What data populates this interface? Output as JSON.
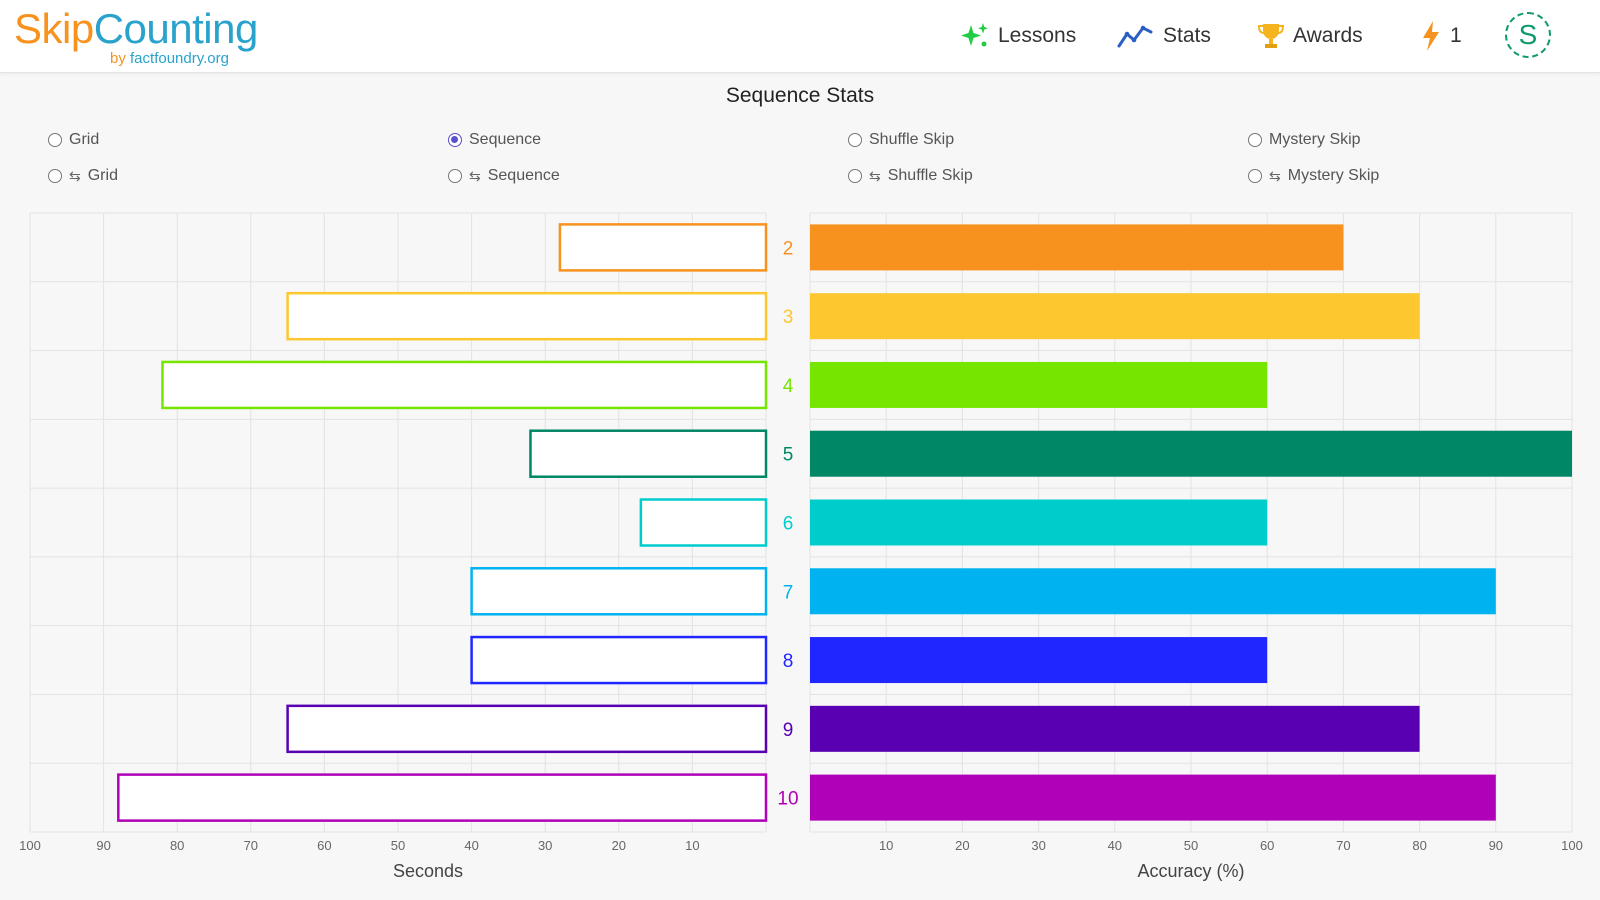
{
  "header": {
    "logo_skip": "Skip",
    "logo_counting": "Counting",
    "logo_by": "by ",
    "logo_site": "factfoundry.org",
    "nav": {
      "lessons": "Lessons",
      "stats": "Stats",
      "awards": "Awards",
      "streak": "1"
    },
    "avatar_letter": "S"
  },
  "page": {
    "title": "Sequence Stats"
  },
  "modes": {
    "grid": "Grid",
    "sequence": "Sequence",
    "shuffle_skip": "Shuffle Skip",
    "mystery_skip": "Mystery Skip",
    "rev_grid": "Grid",
    "rev_sequence": "Sequence",
    "rev_shuffle_skip": "Shuffle Skip",
    "rev_mystery_skip": "Mystery Skip",
    "selected": "sequence"
  },
  "chart_data": {
    "type": "bar",
    "categories": [
      "2",
      "3",
      "4",
      "5",
      "6",
      "7",
      "8",
      "9",
      "10"
    ],
    "category_colors": [
      "#f7921e",
      "#fcc72f",
      "#76e600",
      "#008765",
      "#00cccc",
      "#00b3f0",
      "#2026ff",
      "#5a00b3",
      "#b000b8"
    ],
    "series": [
      {
        "name": "Seconds",
        "values": [
          28,
          65,
          82,
          32,
          17,
          40,
          40,
          65,
          88
        ]
      },
      {
        "name": "Accuracy (%)",
        "values": [
          70,
          80,
          60,
          100,
          60,
          90,
          60,
          80,
          90
        ]
      }
    ],
    "xlabel_left": "Seconds",
    "xlabel_right": "Accuracy (%)",
    "left_ticks": [
      "100",
      "90",
      "80",
      "70",
      "60",
      "50",
      "40",
      "30",
      "20",
      "10"
    ],
    "right_ticks": [
      "10",
      "20",
      "30",
      "40",
      "50",
      "60",
      "70",
      "80",
      "90",
      "100"
    ],
    "xlim_left": [
      100,
      0
    ],
    "xlim_right": [
      0,
      100
    ],
    "grid": true
  }
}
